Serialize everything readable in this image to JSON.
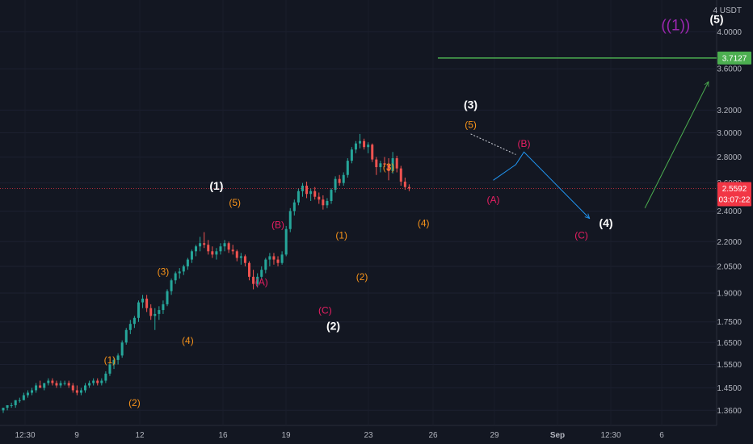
{
  "chart_data": {
    "type": "candlestick",
    "title": "",
    "y_scale": "log",
    "ylim": [
      1.33,
      4.3
    ],
    "y_unit_label": "4 USDT",
    "y_ticks": [
      "4.0000",
      "3.6000",
      "3.2000",
      "3.0000",
      "2.8000",
      "2.6000",
      "2.4000",
      "2.2000",
      "2.0500",
      "1.9000",
      "1.7500",
      "1.6500",
      "1.5500",
      "1.4500",
      "1.3600"
    ],
    "x_tick_labels": [
      "12:30",
      "9",
      "12",
      "16",
      "19",
      "23",
      "26",
      "29",
      "Sep",
      "12:30",
      "6"
    ],
    "candles": [
      [
        1.36,
        1.37,
        1.35,
        1.37
      ],
      [
        1.37,
        1.38,
        1.36,
        1.38
      ],
      [
        1.38,
        1.39,
        1.37,
        1.38
      ],
      [
        1.38,
        1.4,
        1.37,
        1.4
      ],
      [
        1.4,
        1.41,
        1.39,
        1.4
      ],
      [
        1.4,
        1.43,
        1.4,
        1.42
      ],
      [
        1.42,
        1.44,
        1.41,
        1.43
      ],
      [
        1.43,
        1.45,
        1.42,
        1.44
      ],
      [
        1.44,
        1.47,
        1.43,
        1.46
      ],
      [
        1.46,
        1.48,
        1.45,
        1.45
      ],
      [
        1.45,
        1.47,
        1.44,
        1.47
      ],
      [
        1.47,
        1.49,
        1.46,
        1.48
      ],
      [
        1.48,
        1.49,
        1.46,
        1.47
      ],
      [
        1.47,
        1.48,
        1.45,
        1.46
      ],
      [
        1.46,
        1.48,
        1.45,
        1.47
      ],
      [
        1.47,
        1.48,
        1.46,
        1.47
      ],
      [
        1.47,
        1.48,
        1.45,
        1.46
      ],
      [
        1.46,
        1.47,
        1.43,
        1.44
      ],
      [
        1.44,
        1.46,
        1.42,
        1.43
      ],
      [
        1.43,
        1.45,
        1.42,
        1.44
      ],
      [
        1.44,
        1.47,
        1.43,
        1.46
      ],
      [
        1.46,
        1.48,
        1.45,
        1.47
      ],
      [
        1.47,
        1.49,
        1.46,
        1.48
      ],
      [
        1.48,
        1.49,
        1.46,
        1.47
      ],
      [
        1.47,
        1.49,
        1.46,
        1.48
      ],
      [
        1.48,
        1.52,
        1.47,
        1.51
      ],
      [
        1.51,
        1.56,
        1.5,
        1.55
      ],
      [
        1.55,
        1.58,
        1.53,
        1.57
      ],
      [
        1.57,
        1.6,
        1.55,
        1.59
      ],
      [
        1.59,
        1.66,
        1.58,
        1.65
      ],
      [
        1.65,
        1.72,
        1.64,
        1.71
      ],
      [
        1.71,
        1.76,
        1.69,
        1.74
      ],
      [
        1.74,
        1.78,
        1.72,
        1.77
      ],
      [
        1.77,
        1.86,
        1.75,
        1.85
      ],
      [
        1.85,
        1.89,
        1.82,
        1.87
      ],
      [
        1.87,
        1.89,
        1.8,
        1.82
      ],
      [
        1.82,
        1.84,
        1.76,
        1.78
      ],
      [
        1.78,
        1.82,
        1.71,
        1.79
      ],
      [
        1.79,
        1.83,
        1.76,
        1.81
      ],
      [
        1.81,
        1.86,
        1.79,
        1.84
      ],
      [
        1.84,
        1.92,
        1.83,
        1.91
      ],
      [
        1.91,
        1.98,
        1.89,
        1.97
      ],
      [
        1.97,
        2.02,
        1.95,
        2.01
      ],
      [
        2.01,
        2.04,
        1.98,
        2.02
      ],
      [
        2.02,
        2.06,
        2.0,
        2.05
      ],
      [
        2.05,
        2.1,
        2.03,
        2.09
      ],
      [
        2.09,
        2.15,
        2.07,
        2.14
      ],
      [
        2.14,
        2.18,
        2.11,
        2.17
      ],
      [
        2.17,
        2.23,
        2.14,
        2.19
      ],
      [
        2.19,
        2.26,
        2.16,
        2.18
      ],
      [
        2.18,
        2.21,
        2.12,
        2.14
      ],
      [
        2.14,
        2.17,
        2.1,
        2.12
      ],
      [
        2.12,
        2.16,
        2.09,
        2.14
      ],
      [
        2.14,
        2.19,
        2.12,
        2.17
      ],
      [
        2.17,
        2.21,
        2.14,
        2.19
      ],
      [
        2.19,
        2.2,
        2.13,
        2.15
      ],
      [
        2.15,
        2.18,
        2.12,
        2.14
      ],
      [
        2.14,
        2.15,
        2.08,
        2.1
      ],
      [
        2.1,
        2.13,
        2.06,
        2.11
      ],
      [
        2.11,
        2.12,
        2.05,
        2.07
      ],
      [
        2.07,
        2.08,
        1.97,
        1.99
      ],
      [
        1.99,
        2.03,
        1.92,
        1.95
      ],
      [
        1.95,
        2.01,
        1.93,
        1.99
      ],
      [
        1.99,
        2.05,
        1.98,
        2.03
      ],
      [
        2.03,
        2.1,
        2.01,
        2.09
      ],
      [
        2.09,
        2.13,
        2.05,
        2.11
      ],
      [
        2.11,
        2.13,
        2.06,
        2.09
      ],
      [
        2.09,
        2.11,
        2.05,
        2.07
      ],
      [
        2.07,
        2.14,
        2.06,
        2.12
      ],
      [
        2.12,
        2.3,
        2.11,
        2.28
      ],
      [
        2.28,
        2.42,
        2.26,
        2.4
      ],
      [
        2.4,
        2.48,
        2.37,
        2.46
      ],
      [
        2.46,
        2.56,
        2.44,
        2.54
      ],
      [
        2.54,
        2.6,
        2.5,
        2.58
      ],
      [
        2.58,
        2.61,
        2.49,
        2.52
      ],
      [
        2.52,
        2.56,
        2.47,
        2.54
      ],
      [
        2.54,
        2.57,
        2.48,
        2.5
      ],
      [
        2.5,
        2.53,
        2.45,
        2.48
      ],
      [
        2.48,
        2.51,
        2.41,
        2.44
      ],
      [
        2.44,
        2.49,
        2.42,
        2.47
      ],
      [
        2.47,
        2.56,
        2.45,
        2.55
      ],
      [
        2.55,
        2.65,
        2.53,
        2.63
      ],
      [
        2.63,
        2.66,
        2.58,
        2.6
      ],
      [
        2.6,
        2.68,
        2.58,
        2.66
      ],
      [
        2.66,
        2.79,
        2.64,
        2.77
      ],
      [
        2.77,
        2.88,
        2.75,
        2.86
      ],
      [
        2.86,
        2.93,
        2.83,
        2.91
      ],
      [
        2.91,
        2.99,
        2.87,
        2.93
      ],
      [
        2.93,
        2.95,
        2.86,
        2.88
      ],
      [
        2.88,
        2.92,
        2.83,
        2.9
      ],
      [
        2.9,
        2.91,
        2.76,
        2.78
      ],
      [
        2.78,
        2.8,
        2.66,
        2.72
      ],
      [
        2.72,
        2.77,
        2.68,
        2.75
      ],
      [
        2.75,
        2.8,
        2.72,
        2.74
      ],
      [
        2.74,
        2.79,
        2.62,
        2.69
      ],
      [
        2.69,
        2.84,
        2.67,
        2.79
      ],
      [
        2.79,
        2.81,
        2.68,
        2.71
      ],
      [
        2.71,
        2.73,
        2.58,
        2.61
      ],
      [
        2.61,
        2.64,
        2.55,
        2.57
      ],
      [
        2.57,
        2.59,
        2.54,
        2.56
      ]
    ],
    "current_price": "2.5592",
    "countdown": "03:07:22",
    "target_price": "3.7127",
    "colors": {
      "background": "#131722",
      "up": "#26a69a",
      "down": "#ef5350",
      "axis_text": "#b2b5be",
      "target_line": "#4caf50",
      "price_badge": "#f23645",
      "wave_white": "#ffffff",
      "wave_orange": "#f7931a",
      "wave_pink": "#e91e63",
      "wave_magenta": "#9c27b0",
      "projection_blue": "#2196f3",
      "projection_green": "#4caf50"
    },
    "annotations": [
      {
        "text": "(1)",
        "color": "white",
        "time": 52,
        "price": 2.58
      },
      {
        "text": "(2)",
        "color": "white",
        "time": 80.5,
        "price": 1.73
      },
      {
        "text": "(3)",
        "color": "white",
        "time": 114,
        "price": 3.25
      },
      {
        "text": "(4)",
        "color": "white",
        "time": 147,
        "price": 2.32
      },
      {
        "text": "(5)",
        "color": "white",
        "time": 174,
        "price": 4.15
      },
      {
        "text": "((1))",
        "color": "magenta",
        "time": 164,
        "price": 4.08
      },
      {
        "text": "(1)",
        "color": "orange",
        "time": 26,
        "price": 1.57
      },
      {
        "text": "(2)",
        "color": "orange",
        "time": 32,
        "price": 1.39
      },
      {
        "text": "(3)",
        "color": "orange",
        "time": 39,
        "price": 2.02
      },
      {
        "text": "(4)",
        "color": "orange",
        "time": 45,
        "price": 1.66
      },
      {
        "text": "(5)",
        "color": "orange",
        "time": 56.5,
        "price": 2.46
      },
      {
        "text": "(1)",
        "color": "orange",
        "time": 82.5,
        "price": 2.24
      },
      {
        "text": "(2)",
        "color": "orange",
        "time": 87.5,
        "price": 1.99
      },
      {
        "text": "(3)",
        "color": "orange",
        "time": 94,
        "price": 2.72
      },
      {
        "text": "(4)",
        "color": "orange",
        "time": 102.5,
        "price": 2.32
      },
      {
        "text": "(5)",
        "color": "orange",
        "time": 114,
        "price": 3.07
      },
      {
        "text": "(A)",
        "color": "pink",
        "time": 63,
        "price": 1.96
      },
      {
        "text": "(B)",
        "color": "pink",
        "time": 67,
        "price": 2.31
      },
      {
        "text": "(C)",
        "color": "pink",
        "time": 78.5,
        "price": 1.81
      },
      {
        "text": "(A)",
        "color": "pink",
        "time": 119.5,
        "price": 2.48
      },
      {
        "text": "(B)",
        "color": "pink",
        "time": 127,
        "price": 2.91
      },
      {
        "text": "(C)",
        "color": "pink",
        "time": 141,
        "price": 2.24
      }
    ],
    "target_line_start_time": 106,
    "projection_lines": [
      {
        "color": "blue",
        "dashed": true,
        "points": [
          [
            114,
            2.99
          ],
          [
            125,
            2.82
          ]
        ]
      },
      {
        "color": "blue",
        "dashed": false,
        "points": [
          [
            119.5,
            2.62
          ],
          [
            125,
            2.74
          ],
          [
            127,
            2.84
          ],
          [
            143,
            2.35
          ]
        ]
      },
      {
        "color": "green",
        "dashed": false,
        "points": [
          [
            156.5,
            2.42
          ],
          [
            172,
            3.47
          ]
        ]
      }
    ]
  }
}
